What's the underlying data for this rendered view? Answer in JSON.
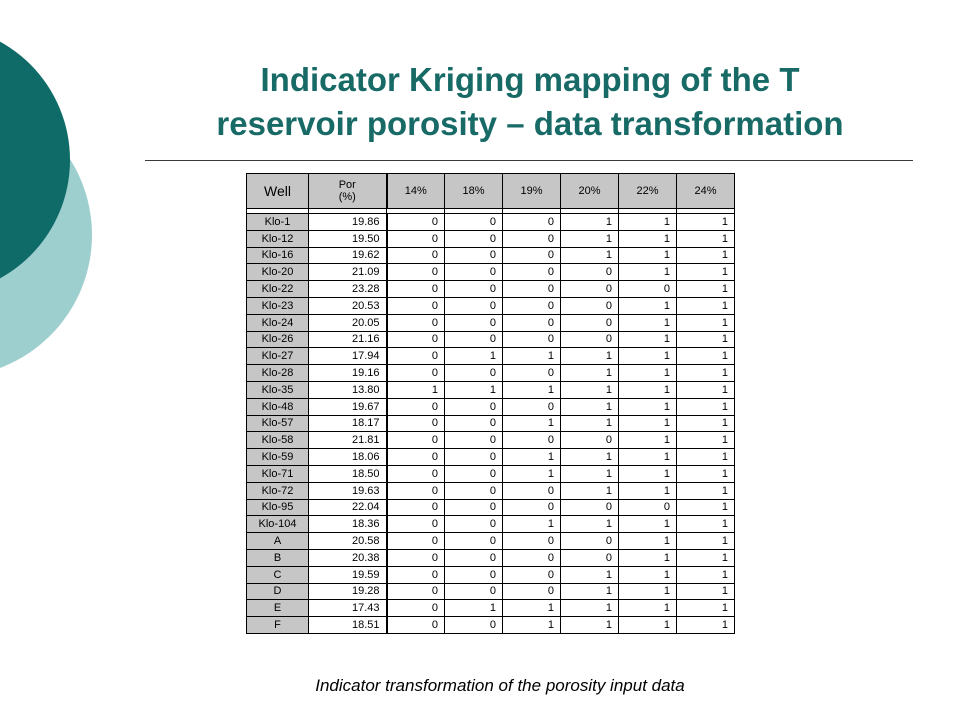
{
  "slide": {
    "title_line1": "Indicator Kriging mapping of the T",
    "title_line2": "reservoir porosity – data transformation",
    "caption": "Indicator transformation of the porosity input data",
    "colors": {
      "accent_dark": "#0e6b68",
      "accent_light": "#9ecfcf",
      "title": "#176a66",
      "header_fill": "#c6c6c6"
    }
  },
  "table": {
    "headers": {
      "well": "Well",
      "por_line1": "Por",
      "por_line2": "(%)",
      "thresholds": [
        "14%",
        "18%",
        "19%",
        "20%",
        "22%",
        "24%"
      ]
    },
    "rows": [
      [
        "Klo-1",
        "19.86",
        "0",
        "0",
        "0",
        "1",
        "1",
        "1"
      ],
      [
        "Klo-12",
        "19.50",
        "0",
        "0",
        "0",
        "1",
        "1",
        "1"
      ],
      [
        "Klo-16",
        "19.62",
        "0",
        "0",
        "0",
        "1",
        "1",
        "1"
      ],
      [
        "Klo-20",
        "21.09",
        "0",
        "0",
        "0",
        "0",
        "1",
        "1"
      ],
      [
        "Klo-22",
        "23.28",
        "0",
        "0",
        "0",
        "0",
        "0",
        "1"
      ],
      [
        "Klo-23",
        "20.53",
        "0",
        "0",
        "0",
        "0",
        "1",
        "1"
      ],
      [
        "Klo-24",
        "20.05",
        "0",
        "0",
        "0",
        "0",
        "1",
        "1"
      ],
      [
        "Klo-26",
        "21.16",
        "0",
        "0",
        "0",
        "0",
        "1",
        "1"
      ],
      [
        "Klo-27",
        "17.94",
        "0",
        "1",
        "1",
        "1",
        "1",
        "1"
      ],
      [
        "Klo-28",
        "19.16",
        "0",
        "0",
        "0",
        "1",
        "1",
        "1"
      ],
      [
        "Klo-35",
        "13.80",
        "1",
        "1",
        "1",
        "1",
        "1",
        "1"
      ],
      [
        "Klo-48",
        "19.67",
        "0",
        "0",
        "0",
        "1",
        "1",
        "1"
      ],
      [
        "Klo-57",
        "18.17",
        "0",
        "0",
        "1",
        "1",
        "1",
        "1"
      ],
      [
        "Klo-58",
        "21.81",
        "0",
        "0",
        "0",
        "0",
        "1",
        "1"
      ],
      [
        "Klo-59",
        "18.06",
        "0",
        "0",
        "1",
        "1",
        "1",
        "1"
      ],
      [
        "Klo-71",
        "18.50",
        "0",
        "0",
        "1",
        "1",
        "1",
        "1"
      ],
      [
        "Klo-72",
        "19.63",
        "0",
        "0",
        "0",
        "1",
        "1",
        "1"
      ],
      [
        "Klo-95",
        "22.04",
        "0",
        "0",
        "0",
        "0",
        "0",
        "1"
      ],
      [
        "Klo-104",
        "18.36",
        "0",
        "0",
        "1",
        "1",
        "1",
        "1"
      ],
      [
        "A",
        "20.58",
        "0",
        "0",
        "0",
        "0",
        "1",
        "1"
      ],
      [
        "B",
        "20.38",
        "0",
        "0",
        "0",
        "0",
        "1",
        "1"
      ],
      [
        "C",
        "19.59",
        "0",
        "0",
        "0",
        "1",
        "1",
        "1"
      ],
      [
        "D",
        "19.28",
        "0",
        "0",
        "0",
        "1",
        "1",
        "1"
      ],
      [
        "E",
        "17.43",
        "0",
        "1",
        "1",
        "1",
        "1",
        "1"
      ],
      [
        "F",
        "18.51",
        "0",
        "0",
        "1",
        "1",
        "1",
        "1"
      ]
    ]
  }
}
